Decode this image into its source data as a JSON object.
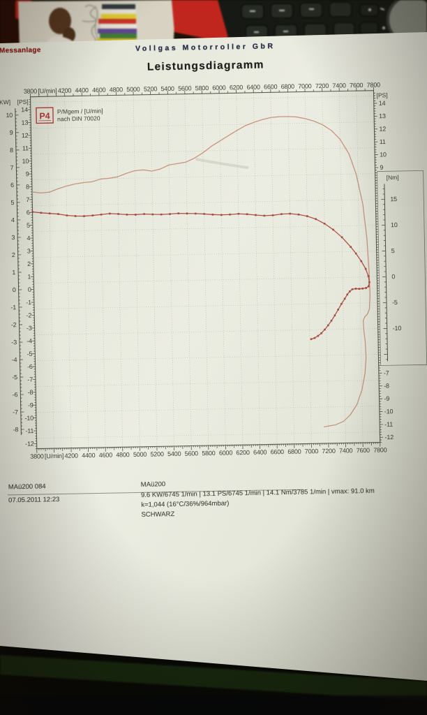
{
  "paper": {
    "header": {
      "device": "-Messanlage",
      "company": "Vollgas Motorroller GbR",
      "title": "Leistungsdiagramm"
    },
    "footer": {
      "doc_id": "MAü200 084",
      "datetime": "07.05.2011  12:23",
      "name": "MAü200",
      "results": "9.6 KW/6745 1/min  |  13.1 PS/6745 1/min  |  14.1 Nm/3785 1/min | vmax: 91.0 km",
      "correction": "k=1,044 (16°C/36%/964mbar)",
      "color_note": "SCHWARZ"
    }
  },
  "chart_data": {
    "type": "line",
    "title": "Leistungsdiagramm",
    "x_axis": {
      "label": "[U/min]",
      "min": 3800,
      "max": 7800,
      "tick_step": 200,
      "tick_labels": [
        "3800",
        "[U/min]",
        "4200",
        "4400",
        "4600",
        "4800",
        "5000",
        "5200",
        "5400",
        "5600",
        "5800",
        "6000",
        "6200",
        "6400",
        "6600",
        "6800",
        "7000",
        "7200",
        "7400",
        "7600",
        "7800"
      ]
    },
    "y_axes": {
      "kw": {
        "label": "[KW]",
        "ticks": [
          10,
          9,
          8,
          7,
          6,
          5,
          4,
          3,
          2,
          1,
          0,
          -1,
          -2,
          -3,
          -4,
          -5,
          -6,
          -7,
          -8
        ]
      },
      "ps_left": {
        "label": "[PS]",
        "ticks": [
          14,
          13,
          12,
          11,
          10,
          9,
          8,
          7,
          6,
          5,
          4,
          3,
          2,
          1,
          0,
          -1,
          -2,
          -3,
          -4,
          -5,
          -6,
          -7,
          -8,
          -9,
          -10,
          -11,
          -12
        ]
      },
      "ps_right": {
        "label": "[PS]",
        "ticks_top": [
          14,
          13,
          12,
          11,
          10,
          9
        ],
        "ticks_bottom": [
          -7,
          -8,
          -9,
          -10,
          -11,
          -12
        ]
      },
      "nm": {
        "label": "[Nm]",
        "ticks": [
          15,
          10,
          5,
          0,
          -5,
          -10
        ]
      }
    },
    "grid": {
      "x_step_rpm": 200,
      "y_step_nm": 5
    },
    "legend": {
      "logo": "P4",
      "line1": "P/Mgem / [U/min]",
      "line2": "nach DIN 70020"
    },
    "stats": {
      "power_kw": "9.6 KW/6745 1/min",
      "power_ps": "13.1 PS/6745 1/min",
      "torque_max": "14.1 Nm/3785 1/min",
      "vmax": "91.0 km",
      "correction": "k=1,044 (16°C/36%/964mbar)",
      "color": "SCHWARZ"
    },
    "series": [
      {
        "name": "P",
        "unit": "PS",
        "color": "#c59076",
        "markers": false,
        "points": [
          [
            3800,
            7.6
          ],
          [
            3900,
            7.5
          ],
          [
            4000,
            7.55
          ],
          [
            4100,
            7.8
          ],
          [
            4200,
            8.0
          ],
          [
            4300,
            8.15
          ],
          [
            4400,
            8.25
          ],
          [
            4500,
            8.3
          ],
          [
            4600,
            8.5
          ],
          [
            4700,
            8.55
          ],
          [
            4800,
            8.65
          ],
          [
            4900,
            8.9
          ],
          [
            5000,
            9.1
          ],
          [
            5100,
            9.15
          ],
          [
            5200,
            9.05
          ],
          [
            5300,
            9.2
          ],
          [
            5400,
            9.5
          ],
          [
            5500,
            9.6
          ],
          [
            5600,
            9.7
          ],
          [
            5700,
            10.0
          ],
          [
            5800,
            10.4
          ],
          [
            5900,
            10.9
          ],
          [
            6000,
            11.3
          ],
          [
            6100,
            11.7
          ],
          [
            6200,
            12.1
          ],
          [
            6300,
            12.45
          ],
          [
            6400,
            12.7
          ],
          [
            6500,
            12.9
          ],
          [
            6600,
            13.05
          ],
          [
            6700,
            13.1
          ],
          [
            6800,
            13.1
          ],
          [
            6900,
            13.05
          ],
          [
            7000,
            12.9
          ],
          [
            7100,
            12.7
          ],
          [
            7200,
            12.4
          ],
          [
            7300,
            11.95
          ],
          [
            7400,
            11.25
          ],
          [
            7500,
            10.1
          ],
          [
            7580,
            8.5
          ],
          [
            7650,
            6.2
          ],
          [
            7690,
            3.5
          ],
          [
            7710,
            0.8
          ],
          [
            7715,
            -1.0
          ],
          [
            7705,
            -2.0
          ],
          [
            7680,
            -2.4
          ],
          [
            7650,
            -2.6
          ],
          [
            7630,
            -2.9
          ],
          [
            7635,
            -3.6
          ],
          [
            7650,
            -4.6
          ],
          [
            7655,
            -5.8
          ],
          [
            7640,
            -7.0
          ],
          [
            7600,
            -8.3
          ],
          [
            7540,
            -9.4
          ],
          [
            7460,
            -10.2
          ],
          [
            7380,
            -10.7
          ],
          [
            7290,
            -10.95
          ],
          [
            7200,
            -11.05
          ],
          [
            7150,
            -11.1
          ]
        ]
      },
      {
        "name": "Mgem",
        "unit": "Nm",
        "color": "#a84a3c",
        "markers": true,
        "points": [
          [
            3800,
            13.8
          ],
          [
            3900,
            13.6
          ],
          [
            4000,
            13.45
          ],
          [
            4100,
            13.3
          ],
          [
            4200,
            13.0
          ],
          [
            4300,
            12.85
          ],
          [
            4400,
            12.8
          ],
          [
            4500,
            12.9
          ],
          [
            4600,
            13.05
          ],
          [
            4700,
            13.2
          ],
          [
            4800,
            13.1
          ],
          [
            4900,
            12.95
          ],
          [
            5000,
            12.9
          ],
          [
            5100,
            13.0
          ],
          [
            5200,
            12.9
          ],
          [
            5300,
            12.85
          ],
          [
            5400,
            12.9
          ],
          [
            5500,
            13.0
          ],
          [
            5600,
            12.95
          ],
          [
            5700,
            12.9
          ],
          [
            5800,
            12.8
          ],
          [
            5900,
            12.65
          ],
          [
            6000,
            12.55
          ],
          [
            6100,
            12.6
          ],
          [
            6200,
            12.7
          ],
          [
            6300,
            12.6
          ],
          [
            6400,
            12.4
          ],
          [
            6500,
            12.25
          ],
          [
            6600,
            12.3
          ],
          [
            6700,
            12.5
          ],
          [
            6800,
            12.55
          ],
          [
            6900,
            12.35
          ],
          [
            7000,
            12.0
          ],
          [
            7100,
            11.4
          ],
          [
            7200,
            10.5
          ],
          [
            7300,
            9.3
          ],
          [
            7400,
            7.8
          ],
          [
            7500,
            5.9
          ],
          [
            7560,
            4.6
          ],
          [
            7620,
            3.1
          ],
          [
            7670,
            1.6
          ],
          [
            7700,
            0.2
          ],
          [
            7710,
            -1.0
          ],
          [
            7700,
            -1.8
          ],
          [
            7670,
            -2.1
          ],
          [
            7630,
            -2.2
          ],
          [
            7590,
            -2.25
          ],
          [
            7550,
            -2.2
          ],
          [
            7510,
            -2.3
          ],
          [
            7480,
            -2.7
          ],
          [
            7450,
            -3.3
          ],
          [
            7420,
            -4.1
          ],
          [
            7380,
            -5.1
          ],
          [
            7340,
            -6.2
          ],
          [
            7300,
            -7.3
          ],
          [
            7260,
            -8.3
          ],
          [
            7220,
            -9.2
          ],
          [
            7180,
            -10.0
          ],
          [
            7140,
            -10.7
          ],
          [
            7100,
            -11.2
          ],
          [
            7060,
            -11.6
          ],
          [
            7020,
            -11.8
          ]
        ]
      }
    ]
  }
}
